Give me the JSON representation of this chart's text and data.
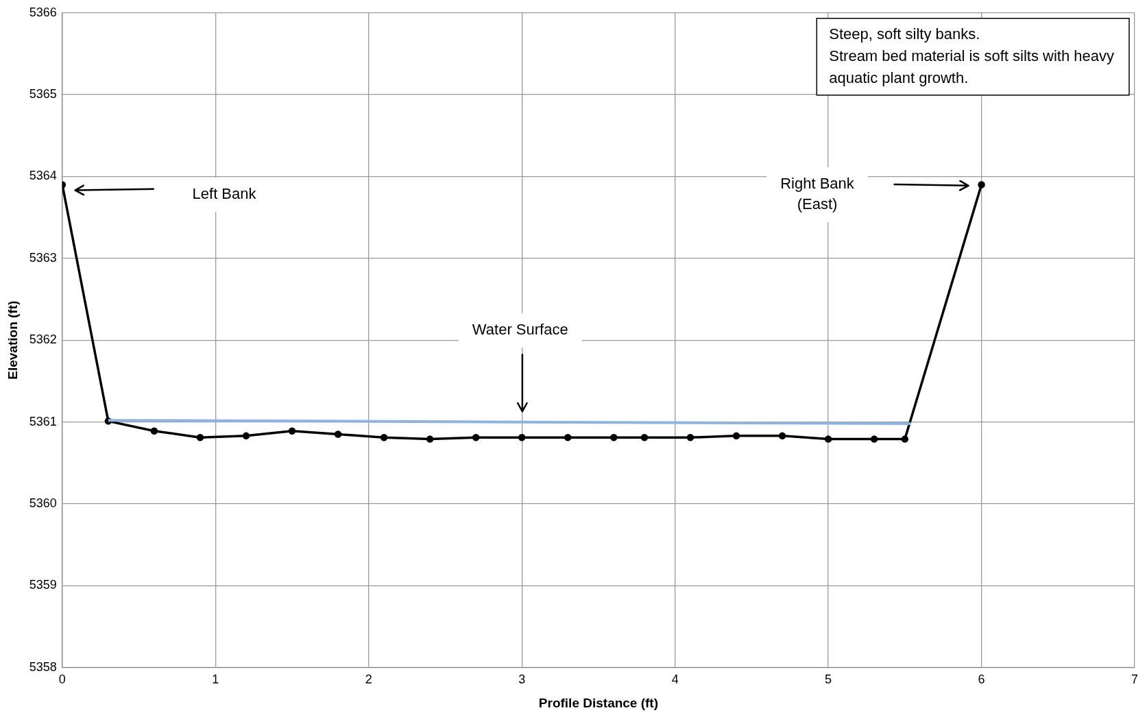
{
  "chart_data": {
    "type": "line",
    "xlabel": "Profile Distance (ft)",
    "ylabel": "Elevation (ft)",
    "xlim": [
      0,
      7
    ],
    "xticks": [
      0,
      1,
      2,
      3,
      4,
      5,
      6,
      7
    ],
    "ylim": [
      5358,
      5366
    ],
    "yticks": [
      5358,
      5359,
      5360,
      5361,
      5362,
      5363,
      5364,
      5365,
      5366
    ],
    "grid": true,
    "legend": false,
    "series": [
      {
        "color": "#000000",
        "marker": "circle",
        "x": [
          0,
          0.3,
          0.6,
          0.9,
          1.2,
          1.5,
          1.8,
          2.1,
          2.4,
          2.7,
          3.0,
          3.3,
          3.6,
          3.8,
          4.1,
          4.4,
          4.7,
          5.0,
          5.3,
          5.5,
          6.0
        ],
        "values": [
          5363.9,
          5361.01,
          5360.89,
          5360.81,
          5360.83,
          5360.89,
          5360.85,
          5360.81,
          5360.79,
          5360.81,
          5360.81,
          5360.81,
          5360.81,
          5360.81,
          5360.81,
          5360.83,
          5360.83,
          5360.79,
          5360.79,
          5360.79,
          5363.9
        ]
      },
      {
        "color": "#8db4e2",
        "marker": "none",
        "x": [
          0.3,
          5.54
        ],
        "values": [
          5361.02,
          5360.98
        ]
      }
    ],
    "annotations": [
      "Left Bank",
      "Water Surface",
      "Right Bank\n(East)",
      "Steep, soft silty banks.\nStream bed material is soft silts with heavy\naquatic plant growth."
    ]
  }
}
